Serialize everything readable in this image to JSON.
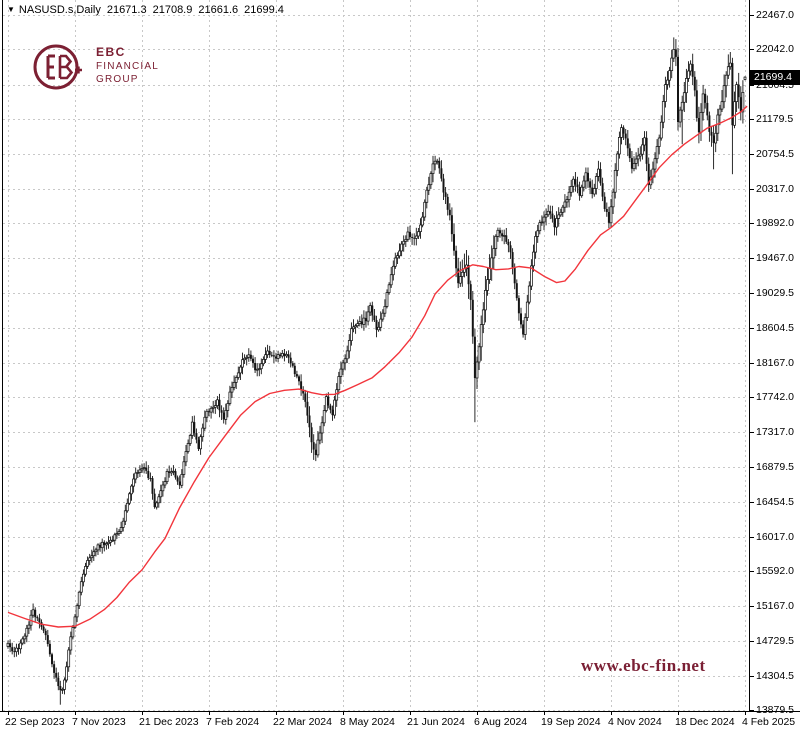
{
  "header": {
    "symbol_tf": "NASUSD.s,Daily",
    "open": "21671.3",
    "high": "21708.9",
    "low": "21661.6",
    "close": "21699.4"
  },
  "logo": {
    "line1": "EBC",
    "line2": "FINANCIAL",
    "line3": "GROUP",
    "color": "#7c2033"
  },
  "watermark": {
    "text": "www.ebc-fin.net",
    "color": "#7b2035"
  },
  "chart_data": {
    "type": "candlestick",
    "symbol": "NASUSD.s",
    "timeframe": "Daily",
    "overlay_line": "red moving average",
    "last_bar": {
      "open": 21671.3,
      "high": 21708.9,
      "low": 21661.6,
      "close": 21699.4
    },
    "y_axis": {
      "top_price": 22467.0,
      "bottom_price": 13879.5,
      "labels": [
        "22467.0",
        "22042.0",
        "21604.5",
        "21179.5",
        "20754.5",
        "20317.0",
        "19892.0",
        "19467.0",
        "19029.5",
        "18604.5",
        "18167.0",
        "17742.0",
        "17317.0",
        "16879.5",
        "16454.5",
        "16017.0",
        "15592.0",
        "15167.0",
        "14729.5",
        "14304.5",
        "13879.5"
      ]
    },
    "x_axis": {
      "labels": [
        "22 Sep 2023",
        "7 Nov 2023",
        "21 Dec 2023",
        "7 Feb 2024",
        "22 Mar 2024",
        "8 May 2024",
        "21 Jun 2024",
        "6 Aug 2024",
        "19 Sep 2024",
        "4 Nov 2024",
        "18 Dec 2024",
        "4 Feb 2025"
      ]
    },
    "bar_count": 353,
    "close_anchors": [
      [
        0,
        14715
      ],
      [
        3,
        14590
      ],
      [
        6,
        14680
      ],
      [
        9,
        14870
      ],
      [
        12,
        15105
      ],
      [
        15,
        14950
      ],
      [
        18,
        14790
      ],
      [
        21,
        14440
      ],
      [
        24,
        14170
      ],
      [
        26,
        14120
      ],
      [
        28,
        14420
      ],
      [
        30,
        14800
      ],
      [
        32,
        15040
      ],
      [
        35,
        15490
      ],
      [
        38,
        15700
      ],
      [
        42,
        15880
      ],
      [
        46,
        15940
      ],
      [
        50,
        15995
      ],
      [
        54,
        16120
      ],
      [
        58,
        16560
      ],
      [
        61,
        16790
      ],
      [
        65,
        16860
      ],
      [
        68,
        16720
      ],
      [
        70,
        16400
      ],
      [
        73,
        16560
      ],
      [
        76,
        16800
      ],
      [
        79,
        16850
      ],
      [
        82,
        16640
      ],
      [
        85,
        17060
      ],
      [
        88,
        17420
      ],
      [
        91,
        17110
      ],
      [
        94,
        17500
      ],
      [
        97,
        17620
      ],
      [
        100,
        17690
      ],
      [
        103,
        17460
      ],
      [
        106,
        17780
      ],
      [
        109,
        17990
      ],
      [
        112,
        18210
      ],
      [
        115,
        18290
      ],
      [
        118,
        18060
      ],
      [
        121,
        18160
      ],
      [
        124,
        18330
      ],
      [
        127,
        18220
      ],
      [
        130,
        18270
      ],
      [
        133,
        18290
      ],
      [
        136,
        18110
      ],
      [
        139,
        17950
      ],
      [
        142,
        17710
      ],
      [
        145,
        17160
      ],
      [
        147,
        17060
      ],
      [
        150,
        17440
      ],
      [
        152,
        17720
      ],
      [
        155,
        17530
      ],
      [
        158,
        18010
      ],
      [
        161,
        18200
      ],
      [
        164,
        18570
      ],
      [
        168,
        18650
      ],
      [
        171,
        18710
      ],
      [
        173,
        18880
      ],
      [
        176,
        18570
      ],
      [
        179,
        18750
      ],
      [
        182,
        19150
      ],
      [
        185,
        19440
      ],
      [
        188,
        19640
      ],
      [
        191,
        19760
      ],
      [
        194,
        19730
      ],
      [
        197,
        19840
      ],
      [
        200,
        20310
      ],
      [
        203,
        20600
      ],
      [
        205,
        20660
      ],
      [
        208,
        20290
      ],
      [
        211,
        19970
      ],
      [
        213,
        19560
      ],
      [
        215,
        19140
      ],
      [
        217,
        19320
      ],
      [
        219,
        19370
      ],
      [
        221,
        18950
      ],
      [
        222,
        18500
      ],
      [
        223,
        17980
      ],
      [
        225,
        18390
      ],
      [
        228,
        19050
      ],
      [
        231,
        19480
      ],
      [
        234,
        19840
      ],
      [
        237,
        19710
      ],
      [
        240,
        19560
      ],
      [
        243,
        18960
      ],
      [
        246,
        18490
      ],
      [
        249,
        19140
      ],
      [
        252,
        19740
      ],
      [
        255,
        19940
      ],
      [
        258,
        20070
      ],
      [
        261,
        19880
      ],
      [
        264,
        20010
      ],
      [
        267,
        20200
      ],
      [
        270,
        20440
      ],
      [
        273,
        20240
      ],
      [
        276,
        20490
      ],
      [
        279,
        20270
      ],
      [
        282,
        20530
      ],
      [
        285,
        20100
      ],
      [
        287,
        19920
      ],
      [
        289,
        20280
      ],
      [
        291,
        20770
      ],
      [
        293,
        21090
      ],
      [
        296,
        20850
      ],
      [
        298,
        20540
      ],
      [
        301,
        20710
      ],
      [
        304,
        20930
      ],
      [
        306,
        20350
      ],
      [
        308,
        20570
      ],
      [
        311,
        20940
      ],
      [
        314,
        21570
      ],
      [
        316,
        21800
      ],
      [
        318,
        22050
      ],
      [
        319,
        21910
      ],
      [
        320,
        21160
      ],
      [
        321,
        21260
      ],
      [
        322,
        21360
      ],
      [
        324,
        21710
      ],
      [
        326,
        21880
      ],
      [
        328,
        21570
      ],
      [
        329,
        21160
      ],
      [
        330,
        21000
      ],
      [
        331,
        21240
      ],
      [
        332,
        21490
      ],
      [
        334,
        21230
      ],
      [
        335,
        21030
      ],
      [
        337,
        20880
      ],
      [
        339,
        21200
      ],
      [
        341,
        21430
      ],
      [
        343,
        21760
      ],
      [
        345,
        21910
      ],
      [
        346,
        21140
      ],
      [
        347,
        21430
      ],
      [
        348,
        21610
      ],
      [
        349,
        21460
      ],
      [
        350,
        21290
      ],
      [
        351,
        21530
      ],
      [
        352,
        21699.4
      ]
    ],
    "ma_points": [
      [
        0,
        15085
      ],
      [
        8,
        15010
      ],
      [
        16,
        14940
      ],
      [
        24,
        14905
      ],
      [
        32,
        14915
      ],
      [
        39,
        15000
      ],
      [
        46,
        15120
      ],
      [
        52,
        15270
      ],
      [
        58,
        15460
      ],
      [
        64,
        15610
      ],
      [
        70,
        15830
      ],
      [
        75,
        16000
      ],
      [
        82,
        16380
      ],
      [
        89,
        16700
      ],
      [
        96,
        17000
      ],
      [
        104,
        17280
      ],
      [
        111,
        17520
      ],
      [
        118,
        17690
      ],
      [
        125,
        17790
      ],
      [
        132,
        17830
      ],
      [
        139,
        17845
      ],
      [
        145,
        17800
      ],
      [
        150,
        17775
      ],
      [
        156,
        17780
      ],
      [
        161,
        17830
      ],
      [
        167,
        17900
      ],
      [
        174,
        17985
      ],
      [
        180,
        18120
      ],
      [
        187,
        18300
      ],
      [
        193,
        18490
      ],
      [
        199,
        18750
      ],
      [
        204,
        19020
      ],
      [
        210,
        19190
      ],
      [
        216,
        19310
      ],
      [
        222,
        19380
      ],
      [
        227,
        19360
      ],
      [
        233,
        19320
      ],
      [
        239,
        19330
      ],
      [
        244,
        19360
      ],
      [
        250,
        19340
      ],
      [
        256,
        19240
      ],
      [
        262,
        19160
      ],
      [
        266,
        19180
      ],
      [
        271,
        19330
      ],
      [
        277,
        19560
      ],
      [
        283,
        19750
      ],
      [
        288,
        19840
      ],
      [
        294,
        19980
      ],
      [
        300,
        20190
      ],
      [
        306,
        20400
      ],
      [
        311,
        20580
      ],
      [
        317,
        20740
      ],
      [
        323,
        20870
      ],
      [
        329,
        20980
      ],
      [
        334,
        21070
      ],
      [
        340,
        21130
      ],
      [
        345,
        21190
      ],
      [
        350,
        21270
      ],
      [
        353,
        21340
      ]
    ],
    "spikes": [
      {
        "i": 25,
        "low": 13945
      },
      {
        "i": 205,
        "high": 20690
      },
      {
        "i": 223,
        "low": 17435
      },
      {
        "i": 318,
        "high": 22190
      },
      {
        "i": 322,
        "low": 20870
      },
      {
        "i": 337,
        "low": 20560
      },
      {
        "i": 346,
        "low": 20500
      }
    ],
    "colors": {
      "candle": "#141414",
      "bull_fill": "#ffffff",
      "ma": "#f2353c",
      "grid": "#c8c8c8",
      "axis": "#000000"
    }
  }
}
